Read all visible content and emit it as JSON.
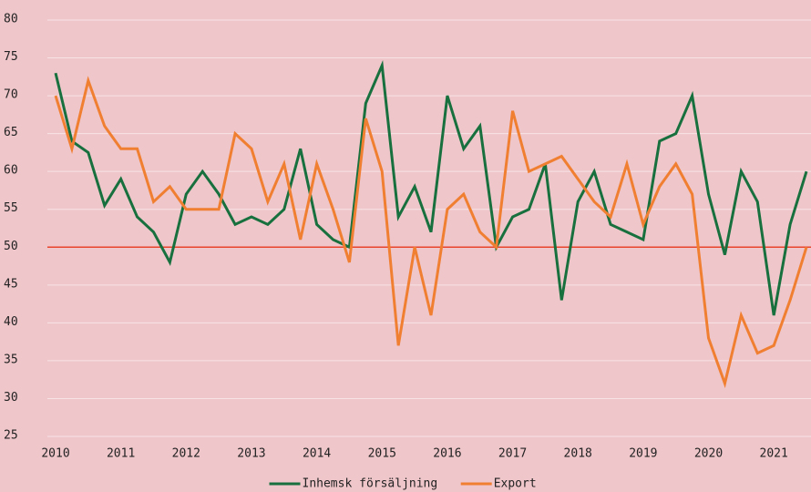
{
  "chart_data": {
    "type": "line",
    "x": [
      2010,
      2010.25,
      2010.5,
      2010.75,
      2011,
      2011.25,
      2011.5,
      2011.75,
      2012,
      2012.25,
      2012.5,
      2012.75,
      2013,
      2013.25,
      2013.5,
      2013.75,
      2014,
      2014.25,
      2014.5,
      2014.75,
      2015,
      2015.25,
      2015.5,
      2015.75,
      2016,
      2016.25,
      2016.5,
      2016.75,
      2017,
      2017.25,
      2017.5,
      2017.75,
      2018,
      2018.25,
      2018.5,
      2018.75,
      2019,
      2019.25,
      2019.5,
      2019.75,
      2020,
      2020.25,
      2020.5,
      2020.75,
      2021,
      2021.25,
      2021.5
    ],
    "series": [
      {
        "name": "Inhemsk försäljning",
        "color": "#17703d",
        "values": [
          73,
          64,
          62.5,
          55.5,
          59,
          54,
          52,
          48,
          57,
          60,
          57,
          53,
          54,
          53,
          55,
          63,
          53,
          51,
          50,
          69,
          74,
          54,
          58,
          52,
          70,
          63,
          66,
          50,
          54,
          55,
          61,
          43,
          56,
          60,
          53,
          52,
          51,
          64,
          65,
          70,
          57,
          49,
          60,
          56,
          41,
          53,
          60
        ]
      },
      {
        "name": "Export",
        "color": "#f07f32",
        "values": [
          70,
          63,
          72,
          66,
          63,
          63,
          56,
          58,
          55,
          55,
          55,
          65,
          63,
          56,
          61,
          51,
          61,
          55,
          48,
          67,
          60,
          37,
          50,
          41,
          55,
          57,
          52,
          50,
          68,
          60,
          61,
          62,
          59,
          56,
          54,
          61,
          53,
          58,
          61,
          57,
          38,
          32,
          41,
          36,
          37,
          43,
          50
        ]
      }
    ],
    "xlim": [
      2010,
      2021.5
    ],
    "xticks": [
      2010,
      2011,
      2012,
      2013,
      2014,
      2015,
      2016,
      2017,
      2018,
      2019,
      2020,
      2021
    ],
    "ylim": [
      25,
      80
    ],
    "yticks": [
      25,
      30,
      35,
      40,
      45,
      50,
      55,
      60,
      65,
      70,
      75,
      80
    ],
    "grid": true,
    "hline": {
      "value": 50,
      "color": "#e8442c"
    },
    "legend": "bottom"
  }
}
